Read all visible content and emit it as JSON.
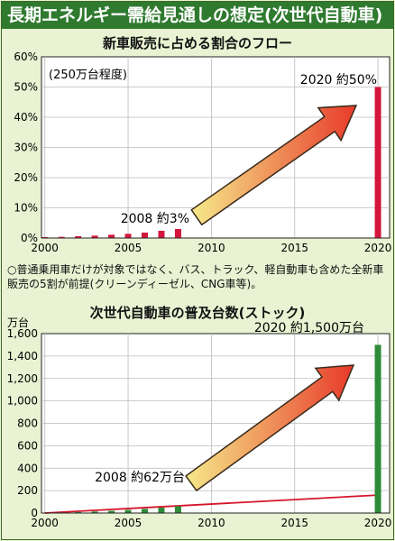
{
  "page_title": "長期エネルギー需給見通しの想定(次世代自動車)",
  "note": "○普通乗用車だけが対象ではなく、バス、トラック、軽自動車も含めた全新車販売の5割が前提(クリーンディーゼル、CNG車等)。",
  "colors": {
    "banner": "#2f7a2f",
    "panel_bg": "#e9f2d2",
    "plot_bg": "#ffffff",
    "bar1": "#d4163c",
    "bar2": "#2e8b3a",
    "trend": "#d4162c",
    "arrow_start": "#f6e98a",
    "arrow_end": "#e83a2a"
  },
  "chart_data": [
    {
      "type": "bar",
      "title": "新車販売に占める割合のフロー",
      "subtitle": "(250万台程度)",
      "ylabel": "",
      "ylim": [
        0,
        60
      ],
      "y_ticks": [
        "0%",
        "10%",
        "20%",
        "30%",
        "40%",
        "50%",
        "60%"
      ],
      "y_tick_values": [
        0,
        10,
        20,
        30,
        40,
        50,
        60
      ],
      "x_ticks": [
        "2000",
        "2005",
        "2010",
        "2015",
        "2020"
      ],
      "x_tick_values": [
        2000,
        2005,
        2010,
        2015,
        2020
      ],
      "xlim": [
        1999.8,
        2020.7
      ],
      "grid": true,
      "bars": [
        {
          "x": 2000,
          "value": 0.3
        },
        {
          "x": 2001,
          "value": 0.4
        },
        {
          "x": 2002,
          "value": 0.6
        },
        {
          "x": 2003,
          "value": 0.8
        },
        {
          "x": 2004,
          "value": 1.1
        },
        {
          "x": 2005,
          "value": 1.4
        },
        {
          "x": 2006,
          "value": 1.8
        },
        {
          "x": 2007,
          "value": 2.4
        },
        {
          "x": 2008,
          "value": 3.0
        },
        {
          "x": 2020,
          "value": 50
        }
      ],
      "annotations": {
        "start": "2008 約3%",
        "end": "2020 約50%"
      }
    },
    {
      "type": "bar",
      "title": "次世代自動車の普及台数(ストック)",
      "ylabel": "万台",
      "ylim": [
        0,
        1600
      ],
      "y_ticks": [
        "0",
        "200",
        "400",
        "600",
        "800",
        "1,000",
        "1,200",
        "1,400",
        "1,600"
      ],
      "y_tick_values": [
        0,
        200,
        400,
        600,
        800,
        1000,
        1200,
        1400,
        1600
      ],
      "x_ticks": [
        "2000",
        "2005",
        "2010",
        "2015",
        "2020"
      ],
      "x_tick_values": [
        2000,
        2005,
        2010,
        2015,
        2020
      ],
      "xlim": [
        1999.8,
        2020.7
      ],
      "grid": true,
      "bars": [
        {
          "x": 2000,
          "value": 2
        },
        {
          "x": 2001,
          "value": 5
        },
        {
          "x": 2002,
          "value": 9
        },
        {
          "x": 2003,
          "value": 14
        },
        {
          "x": 2004,
          "value": 20
        },
        {
          "x": 2005,
          "value": 28
        },
        {
          "x": 2006,
          "value": 37
        },
        {
          "x": 2007,
          "value": 48
        },
        {
          "x": 2008,
          "value": 62
        },
        {
          "x": 2020,
          "value": 1500
        }
      ],
      "trend_line": {
        "x": [
          2000,
          2020
        ],
        "y": [
          0,
          160
        ]
      },
      "annotations": {
        "start": "2008 約62万台",
        "end": "2020 約1,500万台"
      }
    }
  ]
}
